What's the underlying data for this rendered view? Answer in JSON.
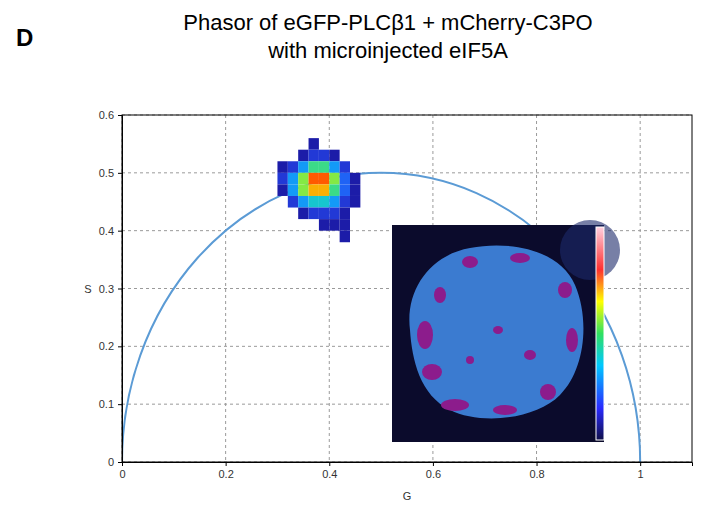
{
  "chart_data": {
    "type": "heatmap",
    "panel_label": "D",
    "title": [
      "Phasor of eGFP-PLCβ1 + mCherry-C3PO",
      "with microinjected eIF5A"
    ],
    "x_label": "G",
    "y_label": "S",
    "xlim": [
      0,
      1.1
    ],
    "ylim": [
      0,
      0.6
    ],
    "xticks": [
      0,
      0.2,
      0.4,
      0.6,
      0.8,
      1
    ],
    "yticks": [
      0,
      0.1,
      0.2,
      0.3,
      0.4,
      0.5,
      0.6
    ],
    "grid": true,
    "bin_width": 0.02,
    "count_range": [
      1,
      10
    ],
    "cells": [
      [
        0.36,
        0.54,
        1
      ],
      [
        0.34,
        0.52,
        1
      ],
      [
        0.36,
        0.52,
        2
      ],
      [
        0.38,
        0.52,
        2
      ],
      [
        0.4,
        0.52,
        1
      ],
      [
        0.3,
        0.5,
        1
      ],
      [
        0.32,
        0.5,
        2
      ],
      [
        0.34,
        0.5,
        4
      ],
      [
        0.36,
        0.5,
        6
      ],
      [
        0.38,
        0.5,
        6
      ],
      [
        0.4,
        0.5,
        4
      ],
      [
        0.42,
        0.5,
        2
      ],
      [
        0.3,
        0.48,
        2
      ],
      [
        0.32,
        0.48,
        4
      ],
      [
        0.34,
        0.48,
        7
      ],
      [
        0.36,
        0.48,
        10
      ],
      [
        0.38,
        0.48,
        10
      ],
      [
        0.4,
        0.48,
        7
      ],
      [
        0.42,
        0.48,
        3
      ],
      [
        0.44,
        0.48,
        1
      ],
      [
        0.3,
        0.46,
        1
      ],
      [
        0.32,
        0.46,
        4
      ],
      [
        0.34,
        0.46,
        7
      ],
      [
        0.36,
        0.46,
        9
      ],
      [
        0.38,
        0.46,
        9
      ],
      [
        0.4,
        0.46,
        6
      ],
      [
        0.42,
        0.46,
        3
      ],
      [
        0.44,
        0.46,
        1
      ],
      [
        0.32,
        0.44,
        2
      ],
      [
        0.34,
        0.44,
        4
      ],
      [
        0.36,
        0.44,
        5
      ],
      [
        0.38,
        0.44,
        5
      ],
      [
        0.4,
        0.44,
        4
      ],
      [
        0.42,
        0.44,
        2
      ],
      [
        0.44,
        0.44,
        1
      ],
      [
        0.34,
        0.42,
        1
      ],
      [
        0.36,
        0.42,
        2
      ],
      [
        0.38,
        0.42,
        2
      ],
      [
        0.4,
        0.42,
        2
      ],
      [
        0.42,
        0.42,
        1
      ],
      [
        0.38,
        0.4,
        1
      ],
      [
        0.4,
        0.4,
        1
      ],
      [
        0.42,
        0.4,
        1
      ],
      [
        0.42,
        0.38,
        1
      ]
    ]
  }
}
